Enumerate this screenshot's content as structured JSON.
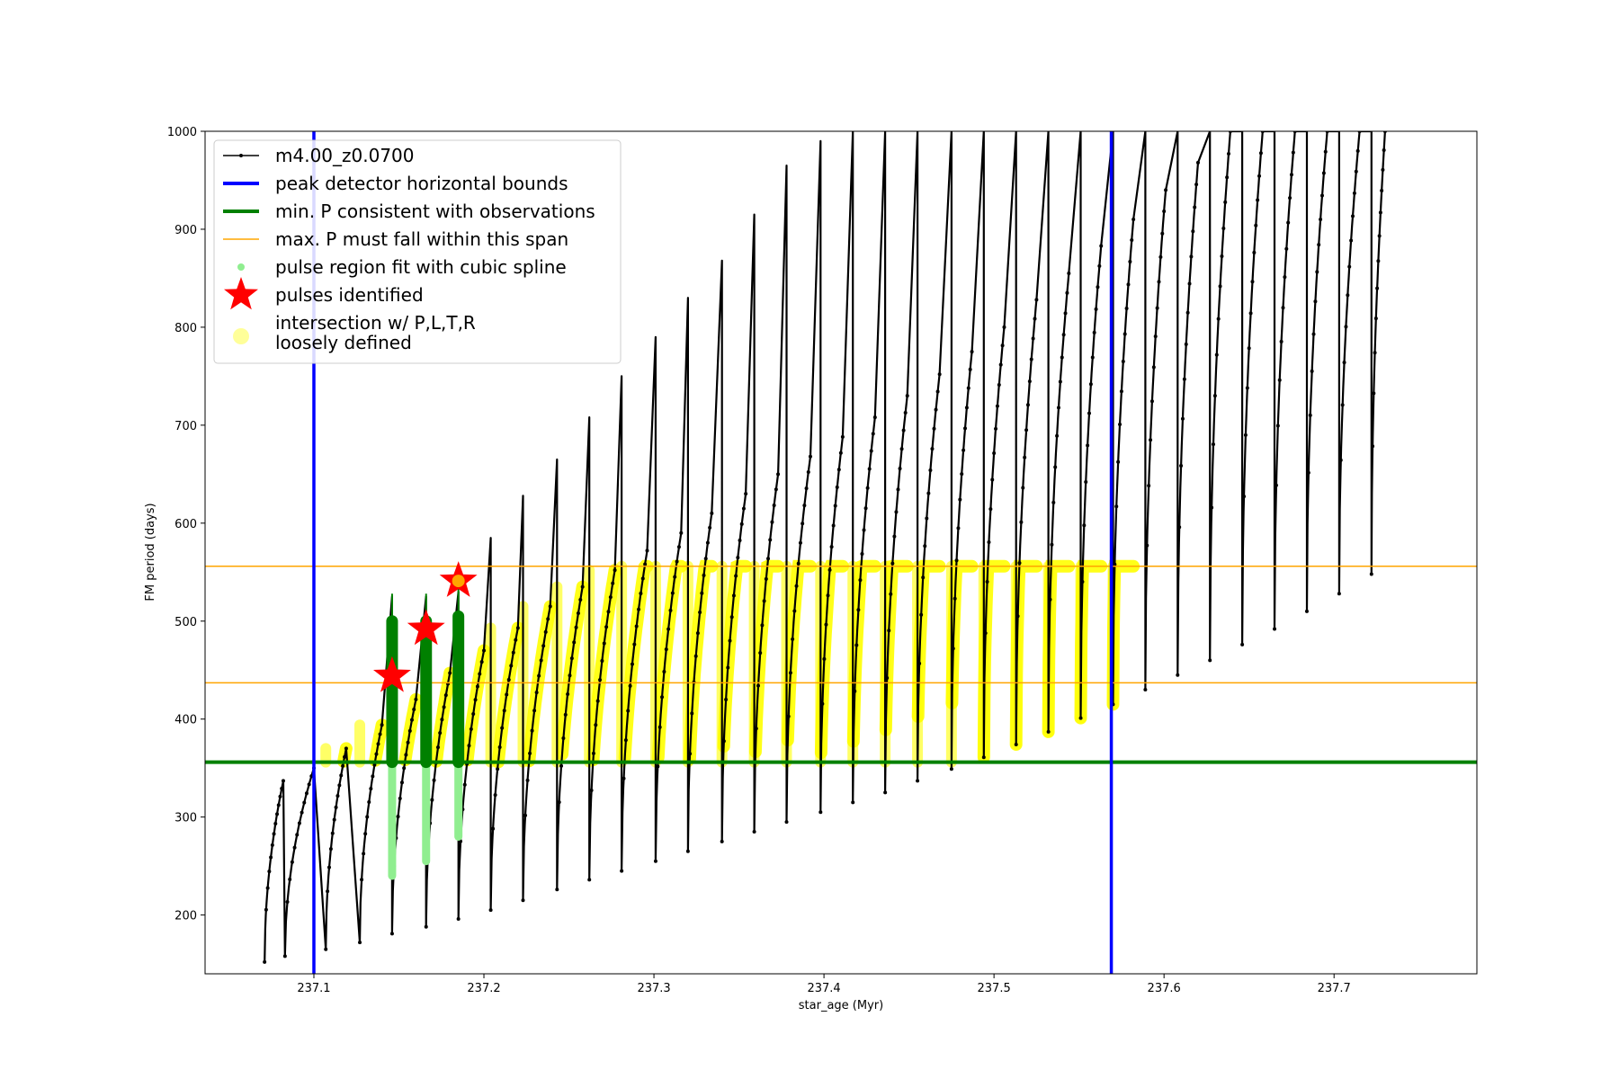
{
  "chart_data": {
    "type": "line",
    "title": "",
    "xlabel": "star_age (Myr)",
    "ylabel": "FM period (days)",
    "xlim": [
      237.036,
      237.784
    ],
    "ylim": [
      140,
      1000
    ],
    "xticks": [
      237.1,
      237.2,
      237.3,
      237.4,
      237.5,
      237.6,
      237.7
    ],
    "yticks": [
      200,
      300,
      400,
      500,
      600,
      700,
      800,
      900,
      1000
    ],
    "grid": false,
    "legend_position": "top-left",
    "colors": {
      "model": "#000000",
      "bounds": "#0000ff",
      "min_p": "#008000",
      "max_p_span": "#ffa500",
      "spline": "#90ee90",
      "pulses": "#ff0000",
      "intersection": "#ffff00"
    },
    "series": [
      {
        "name": "m4.00_z0.0700",
        "style": "black line with point markers, thermal-pulse sawtooth",
        "pulses": [
          {
            "x": 237.071,
            "min": 152,
            "peak": 337,
            "end": 237.082
          },
          {
            "x": 237.083,
            "min": 158,
            "peak": 350,
            "end": 237.1
          },
          {
            "x": 237.107,
            "min": 165,
            "peak": 370,
            "end": 237.119
          },
          {
            "x": 237.127,
            "min": 172,
            "peak": 394,
            "end": 237.14
          },
          {
            "x": 237.146,
            "min": 181,
            "peak": 420,
            "end": 237.16,
            "spike": 525
          },
          {
            "x": 237.166,
            "min": 188,
            "peak": 447,
            "end": 237.18,
            "spike": 525
          },
          {
            "x": 237.185,
            "min": 196,
            "peak": 470,
            "end": 237.2,
            "spike": 530
          },
          {
            "x": 237.204,
            "min": 205,
            "peak": 493,
            "end": 237.22,
            "spike": 585
          },
          {
            "x": 237.223,
            "min": 215,
            "peak": 515,
            "end": 237.239,
            "spike": 628
          },
          {
            "x": 237.243,
            "min": 226,
            "peak": 535,
            "end": 237.258,
            "spike": 665
          },
          {
            "x": 237.262,
            "min": 236,
            "peak": 552,
            "end": 237.277,
            "spike": 708
          },
          {
            "x": 237.281,
            "min": 245,
            "peak": 572,
            "end": 237.296,
            "spike": 750
          },
          {
            "x": 237.301,
            "min": 255,
            "peak": 590,
            "end": 237.316,
            "spike": 790
          },
          {
            "x": 237.32,
            "min": 265,
            "peak": 610,
            "end": 237.334,
            "spike": 830
          },
          {
            "x": 237.34,
            "min": 275,
            "peak": 630,
            "end": 237.354,
            "spike": 868
          },
          {
            "x": 237.359,
            "min": 285,
            "peak": 650,
            "end": 237.373,
            "spike": 915
          },
          {
            "x": 237.378,
            "min": 295,
            "peak": 668,
            "end": 237.392,
            "spike": 965
          },
          {
            "x": 237.398,
            "min": 305,
            "peak": 688,
            "end": 237.411,
            "spike": 990
          },
          {
            "x": 237.417,
            "min": 315,
            "peak": 708,
            "end": 237.43,
            "spike": 1000
          },
          {
            "x": 237.436,
            "min": 325,
            "peak": 730,
            "end": 237.449,
            "spike": 1000
          },
          {
            "x": 237.455,
            "min": 337,
            "peak": 752,
            "end": 237.468,
            "spike": 1000
          },
          {
            "x": 237.475,
            "min": 349,
            "peak": 775,
            "end": 237.487,
            "spike": 1000
          },
          {
            "x": 237.494,
            "min": 361,
            "peak": 800,
            "end": 237.506,
            "spike": 1000
          },
          {
            "x": 237.513,
            "min": 374,
            "peak": 828,
            "end": 237.525,
            "spike": 1000
          },
          {
            "x": 237.532,
            "min": 387,
            "peak": 855,
            "end": 237.544,
            "spike": 1000
          },
          {
            "x": 237.551,
            "min": 401,
            "peak": 883,
            "end": 237.563,
            "spike": 1000
          },
          {
            "x": 237.57,
            "min": 415,
            "peak": 910,
            "end": 237.582,
            "spike": 1000
          },
          {
            "x": 237.589,
            "min": 430,
            "peak": 940,
            "end": 237.601,
            "spike": 1000
          },
          {
            "x": 237.608,
            "min": 445,
            "peak": 968,
            "end": 237.62,
            "spike": 1000
          },
          {
            "x": 237.627,
            "min": 460,
            "peak": 1000,
            "end": 237.639,
            "spike": 1000
          },
          {
            "x": 237.646,
            "min": 476,
            "peak": 1000,
            "end": 237.658,
            "spike": 1000
          },
          {
            "x": 237.665,
            "min": 492,
            "peak": 1000,
            "end": 237.677,
            "spike": 1000
          },
          {
            "x": 237.684,
            "min": 510,
            "peak": 1000,
            "end": 237.696,
            "spike": 1000
          },
          {
            "x": 237.703,
            "min": 528,
            "peak": 1000,
            "end": 237.715,
            "spike": 1000
          },
          {
            "x": 237.722,
            "min": 548,
            "peak": 1000,
            "end": 237.73,
            "spike": 1000
          }
        ]
      },
      {
        "name": "peak detector horizontal bounds",
        "type": "vline",
        "x": [
          237.1,
          237.569
        ]
      },
      {
        "name": "min. P consistent with observations",
        "type": "hline",
        "y": 356
      },
      {
        "name": "max. P must fall within this span",
        "type": "hline",
        "y": [
          437,
          556
        ]
      },
      {
        "name": "pulse region fit with cubic spline",
        "type": "scatter",
        "columns": [
          {
            "x": 237.146,
            "lo": 240,
            "hi": 500
          },
          {
            "x": 237.166,
            "lo": 255,
            "hi": 500
          },
          {
            "x": 237.185,
            "lo": 280,
            "hi": 505
          }
        ]
      },
      {
        "name": "pulses identified",
        "type": "scatter",
        "x": [
          237.146,
          237.166,
          237.185
        ],
        "y": [
          444,
          492,
          541
        ]
      },
      {
        "name": "intersection w/ P,L,T,R\nloosely defined",
        "type": "scatter",
        "region_x": [
          237.1,
          237.569
        ],
        "region_y": [
          356,
          556
        ]
      }
    ],
    "legend": [
      "m4.00_z0.0700",
      "peak detector horizontal bounds",
      "min. P consistent with observations",
      "max. P must fall within this span",
      "pulse region fit with cubic spline",
      "pulses identified",
      "intersection w/ P,L,T,R",
      "loosely defined"
    ]
  }
}
